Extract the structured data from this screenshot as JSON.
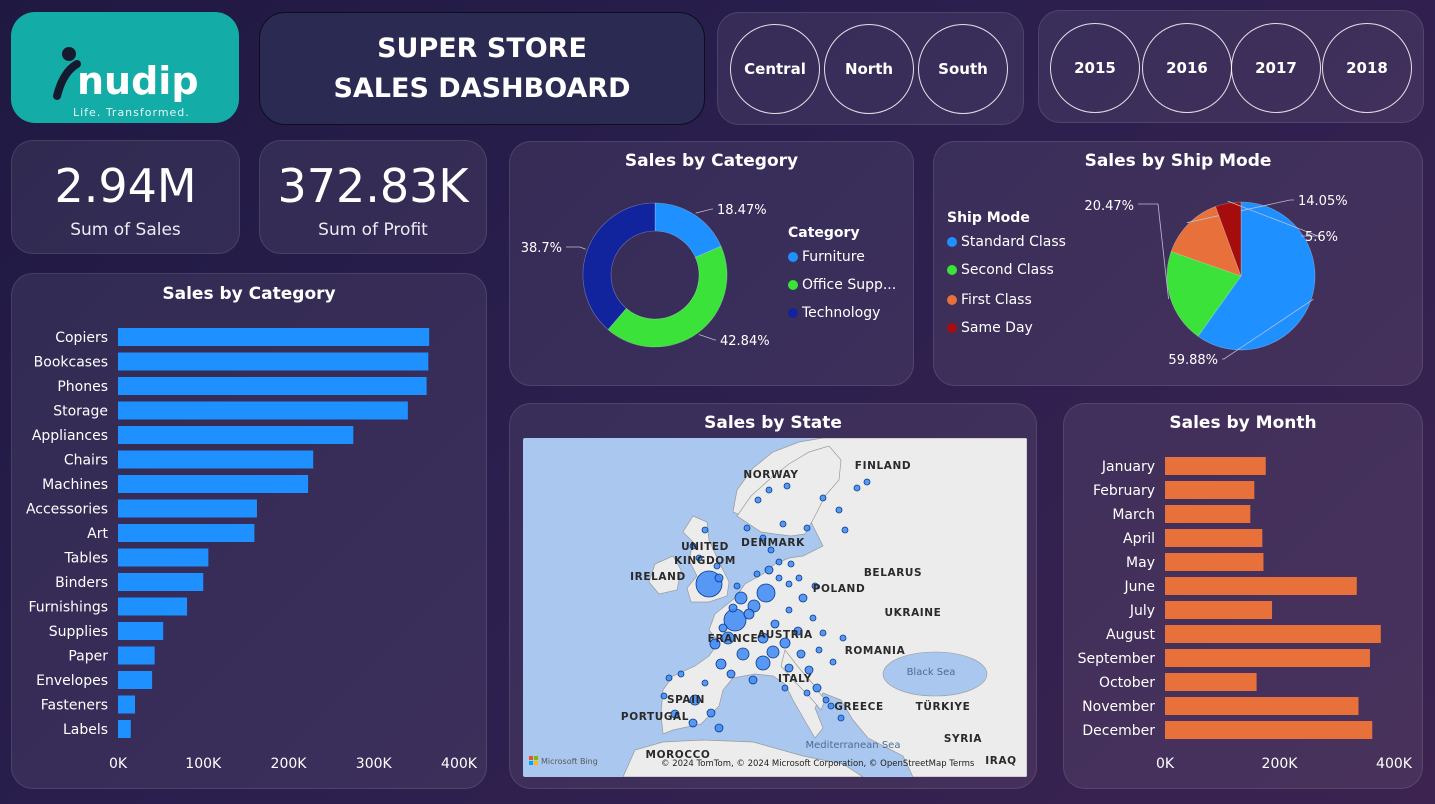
{
  "logo": {
    "brand": "nudip",
    "tagline": "Life. Transformed.",
    "color": "#13aca7"
  },
  "header": {
    "line1": "SUPER STORE",
    "line2": "SALES DASHBOARD"
  },
  "region_slicer": [
    "Central",
    "North",
    "South"
  ],
  "year_slicer": [
    "2015",
    "2016",
    "2017",
    "2018"
  ],
  "kpis": [
    {
      "value": "2.94M",
      "label": "Sum of Sales"
    },
    {
      "value": "372.83K",
      "label": "Sum of Profit"
    }
  ],
  "subcategory_chart": {
    "title": "Sales by Category",
    "chart_data": {
      "type": "bar",
      "orientation": "horizontal",
      "categories": [
        "Copiers",
        "Bookcases",
        "Phones",
        "Storage",
        "Appliances",
        "Chairs",
        "Machines",
        "Accessories",
        "Art",
        "Tables",
        "Binders",
        "Furnishings",
        "Supplies",
        "Paper",
        "Envelopes",
        "Fasteners",
        "Labels"
      ],
      "values": [
        365000,
        364000,
        362000,
        340000,
        276000,
        229000,
        223000,
        163000,
        160000,
        106000,
        100000,
        81000,
        53000,
        43000,
        40000,
        20000,
        15000
      ],
      "xlim": [
        0,
        400000
      ],
      "xticks": [
        "0K",
        "100K",
        "200K",
        "300K",
        "400K"
      ],
      "color": "#1e90ff"
    }
  },
  "category_donut": {
    "title": "Sales by Category",
    "legend_title": "Category",
    "chart_data": {
      "type": "pie",
      "style": "donut",
      "labels": [
        "Furniture",
        "Office Supp...",
        "Technology"
      ],
      "values": [
        18.47,
        42.84,
        38.7
      ],
      "value_labels": [
        "18.47%",
        "42.84%",
        "38.7%"
      ],
      "colors": [
        "#1e90ff",
        "#3ae23a",
        "#12239e"
      ]
    }
  },
  "shipmode_pie": {
    "title": "Sales by Ship Mode",
    "legend_title": "Ship Mode",
    "chart_data": {
      "type": "pie",
      "labels": [
        "Standard Class",
        "Second Class",
        "First Class",
        "Same Day"
      ],
      "values": [
        59.88,
        20.47,
        14.05,
        5.6
      ],
      "value_labels": [
        "59.88%",
        "20.47%",
        "14.05%",
        "5.6%"
      ],
      "colors": [
        "#1e90ff",
        "#3ae23a",
        "#e8703a",
        "#a50d0d"
      ]
    }
  },
  "state_map": {
    "title": "Sales by State",
    "countries": [
      "NORWAY",
      "FINLAND",
      "UNITED",
      "KINGDOM",
      "DENMARK",
      "IRELAND",
      "BELARUS",
      "POLAND",
      "UKRAINE",
      "FRANCE",
      "AUSTRIA",
      "ROMANIA",
      "Black Sea",
      "ITALY",
      "SPAIN",
      "PORTUGAL",
      "GREECE",
      "TÜRKIYE",
      "Mediterranean Sea",
      "SYRIA",
      "MOROCCO",
      "IRAQ"
    ],
    "attribution": "© 2024 TomTom, © 2024 Microsoft Corporation, © OpenStreetMap  Terms",
    "provider": "Microsoft Bing",
    "bubble_color": "#3d8af7"
  },
  "month_chart": {
    "title": "Sales by Month",
    "chart_data": {
      "type": "bar",
      "orientation": "horizontal",
      "categories": [
        "January",
        "February",
        "March",
        "April",
        "May",
        "June",
        "July",
        "August",
        "September",
        "October",
        "November",
        "December"
      ],
      "values": [
        176000,
        156000,
        149000,
        170000,
        172000,
        335000,
        187000,
        377000,
        358000,
        160000,
        338000,
        362000
      ],
      "xlim": [
        0,
        400000
      ],
      "xticks": [
        "0K",
        "200K",
        "400K"
      ],
      "color": "#e8703a"
    }
  }
}
